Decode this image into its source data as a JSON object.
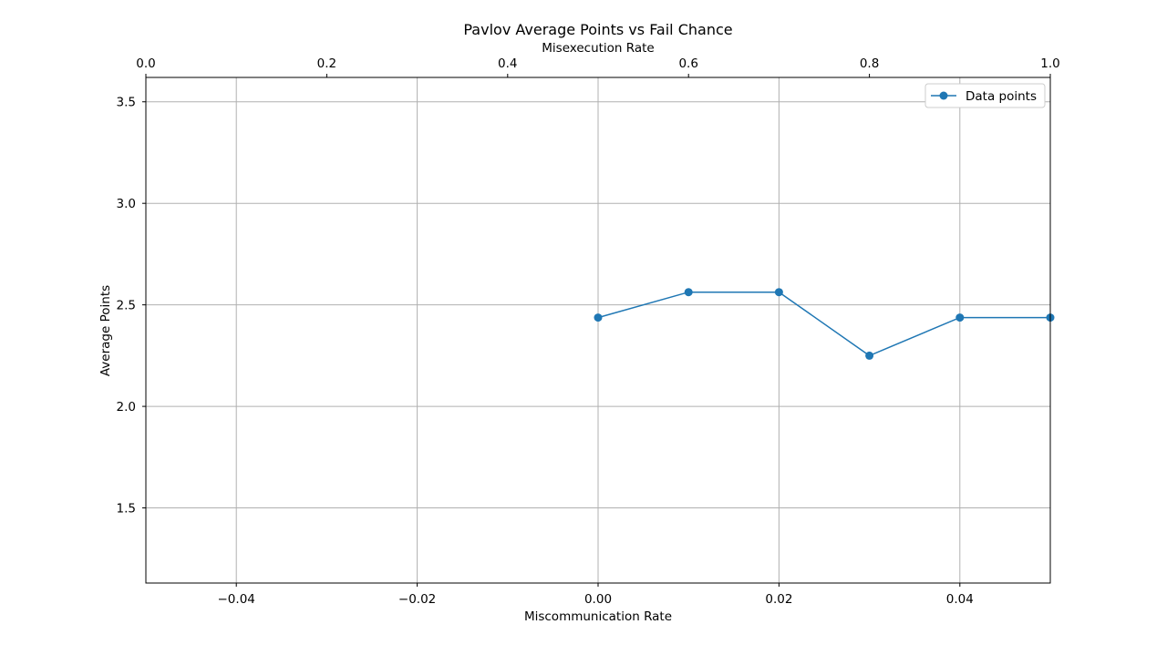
{
  "chart_data": {
    "type": "line",
    "title": "Pavlov Average Points vs Fail Chance",
    "xlabel": "Miscommunication Rate",
    "ylabel": "Average Points",
    "x2label": "Misexecution Rate",
    "xlim": [
      -0.05,
      0.05
    ],
    "x2lim": [
      0.0,
      1.0
    ],
    "ylim": [
      1.13,
      3.62
    ],
    "xticks": [
      "−0.04",
      "−0.02",
      "0.00",
      "0.02",
      "0.04"
    ],
    "xtick_values": [
      -0.04,
      -0.02,
      0.0,
      0.02,
      0.04
    ],
    "x2ticks": [
      "0.0",
      "0.2",
      "0.4",
      "0.6",
      "0.8",
      "1.0"
    ],
    "x2tick_values": [
      0.0,
      0.2,
      0.4,
      0.6,
      0.8,
      1.0
    ],
    "yticks": [
      "1.5",
      "2.0",
      "2.5",
      "3.0",
      "3.5"
    ],
    "ytick_values": [
      1.5,
      2.0,
      2.5,
      3.0,
      3.5
    ],
    "grid": true,
    "legend_position": "top-right",
    "series": [
      {
        "name": "Data points",
        "color": "#1f77b4",
        "marker": "circle",
        "x2": [
          0.5,
          0.6,
          0.7,
          0.8,
          0.9,
          1.0
        ],
        "y": [
          2.4375,
          2.5625,
          2.5625,
          2.25,
          2.4375,
          2.4375
        ]
      }
    ]
  }
}
